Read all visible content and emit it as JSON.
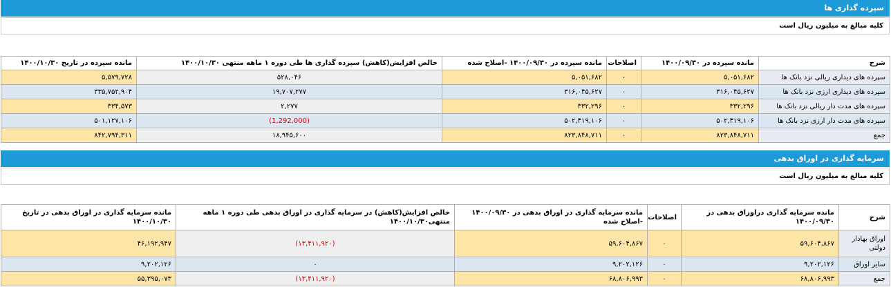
{
  "sections": [
    {
      "title": "سپرده گذاری ها",
      "note": "کلیه مبالغ به میلیون ریال است",
      "table": {
        "header": [
          "شرح",
          "مانده سپرده در ۱۴۰۰/۰۹/۳۰",
          "اصلاحات",
          "مانده سپرده در ۱۴۰۰/۰۹/۳۰ -اصلاح شده",
          "خالص افزایش(کاهش) سپرده گذاری ها طی دوره ۱ ماهه منتهی ۱۴۰۰/۱۰/۳۰",
          "مانده سپرده در تاریخ ۱۴۰۰/۱۰/۳۰"
        ],
        "rows": [
          [
            "سپرده های دیداری ریالی نزد بانک ها",
            "۵,۰۵۱,۶۸۲",
            "۰",
            "۵,۰۵۱,۶۸۲",
            "۵۲۸,۰۴۶",
            "۵,۵۷۹,۷۲۸"
          ],
          [
            "سپرده های دیداری ارزی نزد بانک ها",
            "۳۱۶,۰۴۵,۶۲۷",
            "۰",
            "۳۱۶,۰۴۵,۶۲۷",
            "۱۹,۷۰۷,۲۷۷",
            "۳۳۵,۷۵۲,۹۰۴"
          ],
          [
            "سپرده های مدت دار ریالی نزد بانک ها",
            "۳۳۲,۲۹۶",
            "۰",
            "۳۳۲,۲۹۶",
            "۲,۲۷۷",
            "۳۳۴,۵۷۳"
          ],
          [
            "سپرده های مدت دار ارزی نزد بانک ها",
            "۵۰۲,۴۱۹,۱۰۶",
            "۰",
            "۵۰۲,۴۱۹,۱۰۶",
            "(1,292,000)",
            "۵۰۱,۱۲۷,۱۰۶"
          ],
          [
            "جمع",
            "۸۲۳,۸۴۸,۷۱۱",
            "۰",
            "۸۲۳,۸۴۸,۷۱۱",
            "۱۸,۹۴۵,۶۰۰",
            "۸۴۲,۷۹۴,۳۱۱"
          ]
        ]
      }
    },
    {
      "title": "سرمایه گذاری در اوراق بدهی",
      "note": "کلیه مبالغ به میلیون ریال است",
      "table": {
        "header": [
          "شرح",
          "مانده سرمایه گذاری دراوراق بدهی در ۱۴۰۰/۰۹/۳۰",
          "اصلاحات",
          "مانده سرمایه گذاری در اوراق بدهی در ۱۴۰۰/۰۹/۳۰ -اصلاح شده",
          "خالص افزایش(کاهش) در سرمایه گذاری در اوراق بدهی طی دوره ۱ ماهه منتهی۱۴۰۰/۱۰/۳۰",
          "مانده سرمایه گذاری در اوراق بدهی در تاریخ ۱۴۰۰/۱۰/۳۰"
        ],
        "rows": [
          [
            "اوراق بهادار دولتی",
            "۵۹,۶۰۴,۸۶۷",
            "۰",
            "۵۹,۶۰۴,۸۶۷",
            "(۱۳,۴۱۱,۹۲۰)",
            "۴۶,۱۹۲,۹۴۷"
          ],
          [
            "سایر اوراق",
            "۹,۲۰۲,۱۲۶",
            "۰",
            "۹,۲۰۲,۱۲۶",
            "۰",
            "۹,۲۰۲,۱۲۶"
          ],
          [
            "جمع",
            "۶۸,۸۰۶,۹۹۳",
            "۰",
            "۶۸,۸۰۶,۹۹۳",
            "(۱۳,۴۱۱,۹۲۰)",
            "۵۵,۳۹۵,۰۷۳"
          ]
        ]
      }
    }
  ]
}
